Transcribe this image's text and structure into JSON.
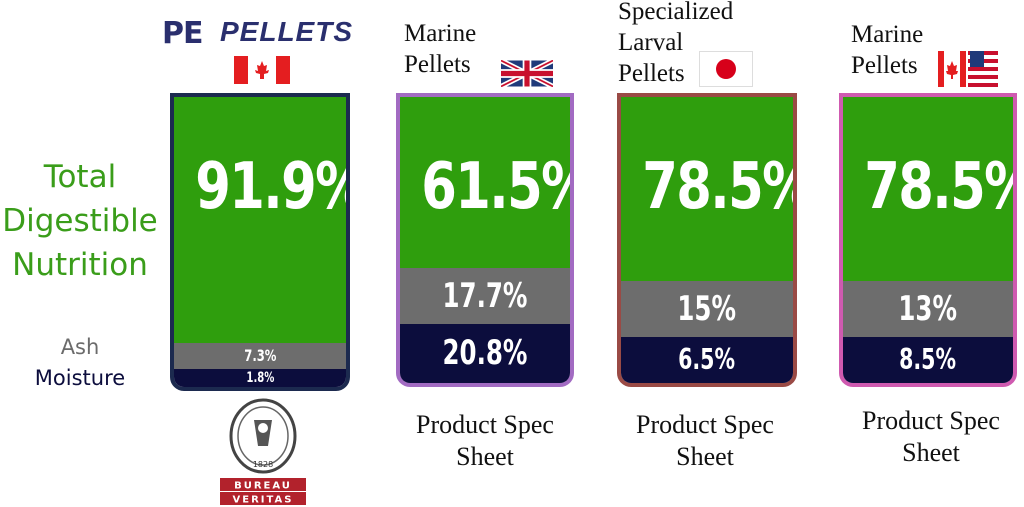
{
  "legend": {
    "total_digestible": [
      "Total",
      "Digestible",
      "Nutrition"
    ],
    "ash": "Ash",
    "moisture": "Moisture"
  },
  "brand": {
    "mark": "PE",
    "word": "PELLETS"
  },
  "certification": {
    "line1": "BUREAU",
    "line2": "VERITAS",
    "year": "1828"
  },
  "colors": {
    "digestible": "#2f9e0d",
    "ash": "#6d6d6d",
    "moisture": "#0c0d3d",
    "legend_green": "#3a9d1a"
  },
  "chart_data": {
    "type": "bar",
    "stacked": true,
    "categories": [
      "PE PELLETS",
      "Marine Pellets",
      "Specialized Larval Pellets",
      "Marine Pellets"
    ],
    "origins": [
      "canada-flag-icon",
      "uk-flag-icon",
      "japan-flag-icon",
      "usa-canada-flag-icon"
    ],
    "series": [
      {
        "name": "Total Digestible Nutrition",
        "values": [
          91.9,
          61.5,
          78.5,
          78.5
        ],
        "labels": [
          "91.9%",
          "61.5%",
          "78.5%",
          "78.5%"
        ]
      },
      {
        "name": "Ash",
        "values": [
          7.3,
          17.7,
          15,
          13
        ],
        "labels": [
          "7.3%",
          "17.7%",
          "15%",
          "13%"
        ]
      },
      {
        "name": "Moisture",
        "values": [
          1.8,
          20.8,
          6.5,
          8.5
        ],
        "labels": [
          "1.8%",
          "20.8%",
          "6.5%",
          "8.5%"
        ]
      }
    ],
    "titles": [
      [],
      [
        "Marine",
        "Pellets"
      ],
      [
        "Specialized",
        "Larval",
        "Pellets"
      ],
      [
        "Marine",
        "Pellets"
      ]
    ],
    "footer": [
      "",
      "Product Spec Sheet",
      "Product Spec Sheet",
      "Product Spec Sheet"
    ],
    "ylim": [
      0,
      100
    ]
  }
}
